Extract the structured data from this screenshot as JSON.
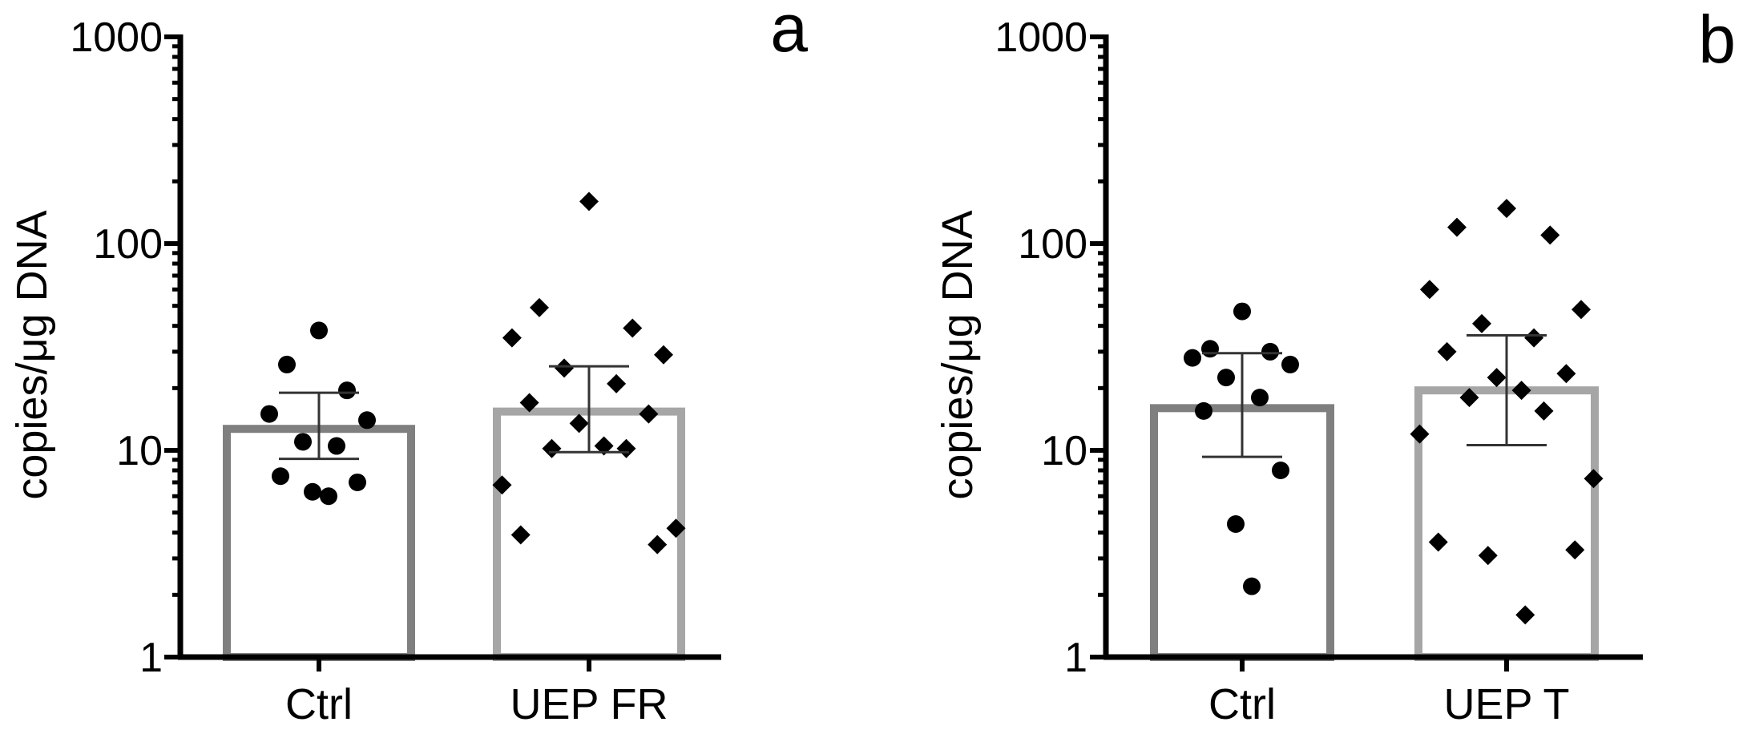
{
  "chart_data": [
    {
      "type": "bar",
      "panel_label": "a",
      "ylabel": "copies/μg DNA",
      "yscale": "log",
      "ylim": [
        1,
        1000
      ],
      "y_ticks": [
        {
          "value": 1,
          "label": "1"
        },
        {
          "value": 10,
          "label": "10"
        },
        {
          "value": 100,
          "label": "100"
        },
        {
          "value": 1000,
          "label": "1000"
        }
      ],
      "categories": [
        "Ctrl",
        "UEP FR"
      ],
      "bars": [
        {
          "category": "Ctrl",
          "value": 12.7,
          "err_low": 9.1,
          "err_high": 19.0,
          "color": "#7f7f7f",
          "marker": "circle",
          "points": [
            38.0,
            26.0,
            19.5,
            15.0,
            14.0,
            11.0,
            10.5,
            7.5,
            7.0,
            6.3,
            6.0
          ]
        },
        {
          "category": "UEP FR",
          "value": 15.4,
          "err_low": 9.8,
          "err_high": 25.5,
          "color": "#a6a6a6",
          "marker": "diamond",
          "points": [
            160.0,
            49.0,
            39.0,
            35.0,
            29.0,
            25.0,
            21.0,
            17.0,
            15.0,
            13.5,
            10.5,
            10.2,
            10.2,
            6.8,
            4.2,
            3.9,
            3.5
          ]
        }
      ]
    },
    {
      "type": "bar",
      "panel_label": "b",
      "ylabel": "copies/μg DNA",
      "yscale": "log",
      "ylim": [
        1,
        1000
      ],
      "y_ticks": [
        {
          "value": 1,
          "label": "1"
        },
        {
          "value": 10,
          "label": "10"
        },
        {
          "value": 100,
          "label": "100"
        },
        {
          "value": 1000,
          "label": "1000"
        }
      ],
      "categories": [
        "Ctrl",
        "UEP T"
      ],
      "bars": [
        {
          "category": "Ctrl",
          "value": 16.0,
          "err_low": 9.3,
          "err_high": 29.5,
          "color": "#7f7f7f",
          "marker": "circle",
          "points": [
            47.0,
            31.0,
            30.0,
            28.0,
            26.0,
            22.5,
            18.0,
            15.5,
            8.0,
            4.4,
            2.2
          ]
        },
        {
          "category": "UEP T",
          "value": 19.5,
          "err_low": 10.6,
          "err_high": 36.0,
          "color": "#a6a6a6",
          "marker": "diamond",
          "points": [
            148.0,
            120.0,
            110.0,
            60.0,
            48.0,
            41.0,
            35.0,
            30.0,
            23.5,
            22.5,
            19.5,
            18.0,
            15.5,
            12.0,
            7.3,
            3.6,
            3.3,
            3.1,
            1.6
          ]
        }
      ]
    }
  ]
}
